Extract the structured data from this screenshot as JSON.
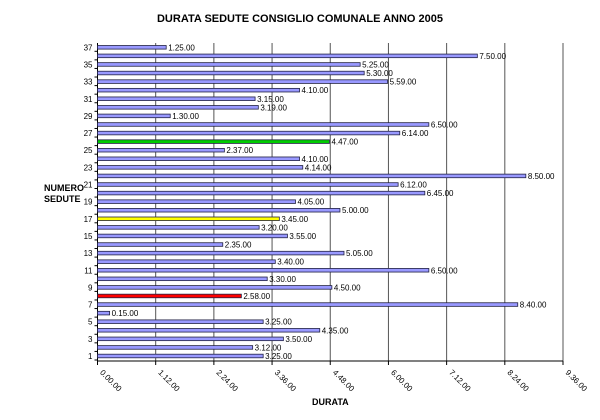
{
  "chart_data": {
    "type": "bar",
    "orientation": "horizontal",
    "title": "DURATA SEDUTE CONSIGLIO COMUNALE ANNO 2005",
    "xlabel": "DURATA",
    "ylabel": [
      "NUMERO",
      "SEDUTE"
    ],
    "value_format": "h.mm.ss",
    "xlim": [
      "0.00.00",
      "9.36.00"
    ],
    "x_ticks": [
      "0.00.00",
      "1.12.00",
      "2.24.00",
      "3.36.00",
      "4.48.00",
      "6.00.00",
      "7.12.00",
      "8.24.00",
      "9.36.00"
    ],
    "y_tick_labels": [
      "1",
      "3",
      "5",
      "7",
      "9",
      "11",
      "13",
      "15",
      "17",
      "19",
      "21",
      "23",
      "25",
      "27",
      "29",
      "31",
      "33",
      "35",
      "37"
    ],
    "grid": "vertical",
    "categories": [
      "1",
      "2",
      "3",
      "4",
      "5",
      "6",
      "7",
      "8",
      "9",
      "10",
      "11",
      "12",
      "13",
      "14",
      "15",
      "16",
      "17",
      "18",
      "19",
      "20",
      "21",
      "22",
      "23",
      "24",
      "25",
      "26",
      "27",
      "28",
      "29",
      "30",
      "31",
      "32",
      "33",
      "34",
      "35",
      "36",
      "37"
    ],
    "values": [
      "3.25.00",
      "3.12.00",
      "3.50.00",
      "4.35.00",
      "3.25.00",
      "0.15.00",
      "8.40.00",
      "2.58.00",
      "4.50.00",
      "3.30.00",
      "6.50.00",
      "3.40.00",
      "5.05.00",
      "2.35.00",
      "3.55.00",
      "3.20.00",
      "3.45.00",
      "5.00.00",
      "4.05.00",
      "6.45.00",
      "6.12.00",
      "8.50.00",
      "4.14.00",
      "4.10.00",
      "2.37.00",
      "4.47.00",
      "6.14.00",
      "6.50.00",
      "1.30.00",
      "3.19.00",
      "3.15.00",
      "4.10.00",
      "5.59.00",
      "5.30.00",
      "5.25.00",
      "7.50.00",
      "1.25.00"
    ],
    "colors": {
      "default": "#9999ff",
      "border": "#222244",
      "highlight": {
        "8": "#ff0000",
        "17": "#ffff00",
        "26": "#00cc00"
      }
    }
  }
}
